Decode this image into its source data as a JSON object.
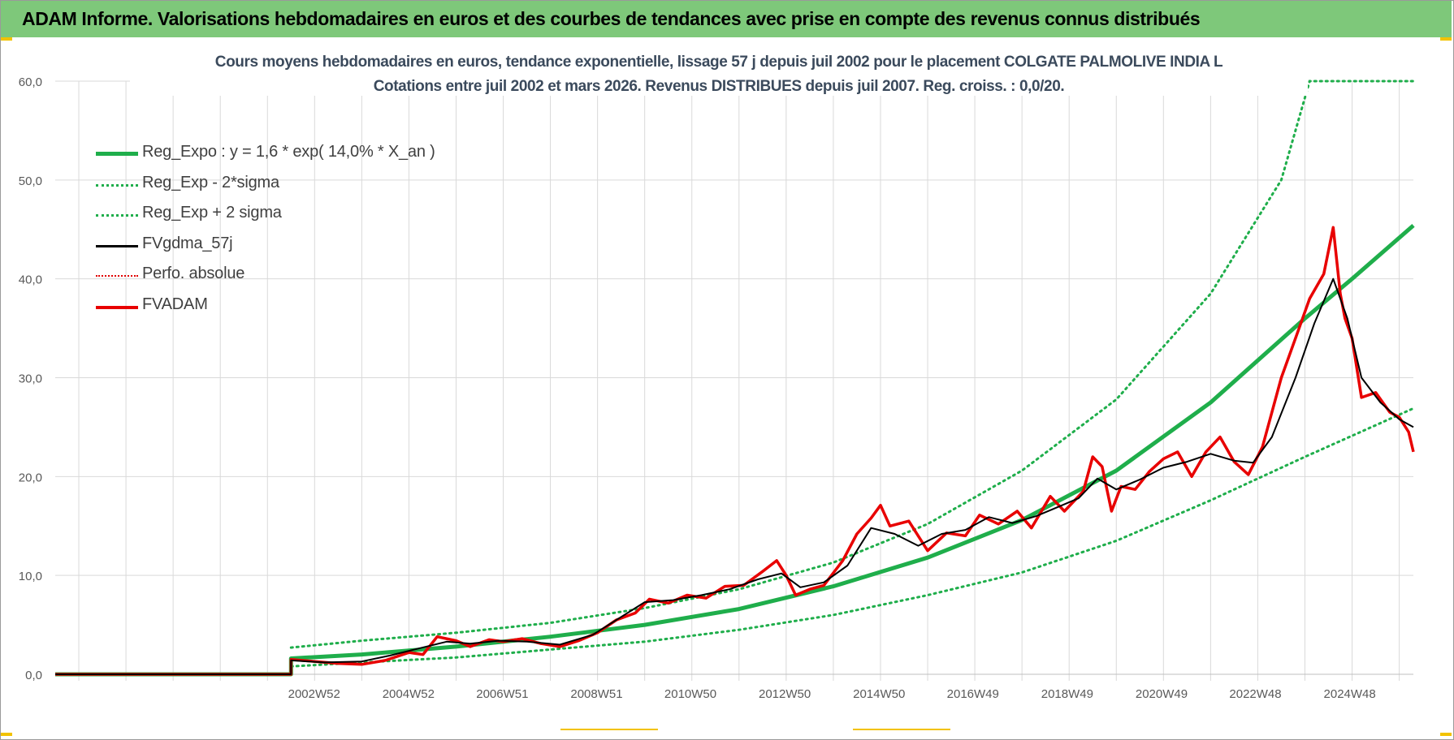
{
  "header": {
    "banner_title": "ADAM Informe. Valorisations hebdomadaires en euros et des courbes de tendances avec prise en compte des revenus connus distribués"
  },
  "colors": {
    "banner_bg": "#7ec87a",
    "reg_expo": "#1fae4b",
    "envelope": "#1fae4b",
    "fvgdma": "#000000",
    "perfo": "#e00000",
    "fvadam": "#e80000",
    "grid": "#d9d9d9",
    "axis_text": "#595959"
  },
  "chart_data": {
    "type": "line",
    "title": "Cours moyens hebdomadaires en euros, tendance exponentielle, lissage 57 j depuis juil 2002 pour le placement COLGATE PALMOLIVE INDIA L",
    "subtitle": "Cotations entre juil 2002 et mars 2026. Revenus DISTRIBUES depuis juil 2007. Reg. croiss. : 0,0/20.",
    "xlabel": "",
    "ylabel": "",
    "ylim": [
      0,
      60
    ],
    "yticks": [
      "0,0",
      "10,0",
      "20,0",
      "30,0",
      "40,0",
      "50,0",
      "60,0"
    ],
    "xlim": [
      1997.5,
      2026.3
    ],
    "xticks": [
      {
        "label": "2002W52",
        "x": 2002.99
      },
      {
        "label": "2004W52",
        "x": 2004.99
      },
      {
        "label": "2006W51",
        "x": 2006.98
      },
      {
        "label": "2008W51",
        "x": 2008.98
      },
      {
        "label": "2010W50",
        "x": 2010.97
      },
      {
        "label": "2012W50",
        "x": 2012.97
      },
      {
        "label": "2014W50",
        "x": 2014.97
      },
      {
        "label": "2016W49",
        "x": 2016.96
      },
      {
        "label": "2018W49",
        "x": 2018.96
      },
      {
        "label": "2020W49",
        "x": 2020.96
      },
      {
        "label": "2022W48",
        "x": 2022.95
      },
      {
        "label": "2024W48",
        "x": 2024.95
      }
    ],
    "legend_position": "top-left",
    "legend": [
      {
        "key": "reg_expo",
        "label": "Reg_Expo : y = 1,6 * exp( 14,0% *  X_an )"
      },
      {
        "key": "reg_minus",
        "label": "Reg_Exp - 2*sigma"
      },
      {
        "key": "reg_plus",
        "label": "Reg_Exp + 2 sigma"
      },
      {
        "key": "fvgdma",
        "label": "FVgdma_57j"
      },
      {
        "key": "perfo",
        "label": "Perfo. absolue"
      },
      {
        "key": "fvadam",
        "label": "FVADAM"
      }
    ],
    "series": [
      {
        "name": "Reg_Expo",
        "key": "reg_expo",
        "x": [
          1997.5,
          2002.5,
          2002.5,
          2004,
          2006,
          2008,
          2010,
          2012,
          2014,
          2016,
          2018,
          2020,
          2022,
          2024,
          2025,
          2026.3
        ],
        "values": [
          0,
          0,
          1.6,
          2.0,
          2.8,
          3.8,
          5.0,
          6.6,
          8.9,
          11.8,
          15.6,
          20.6,
          27.5,
          36.0,
          40.0,
          45.4
        ]
      },
      {
        "name": "Reg_Exp - 2*sigma",
        "key": "reg_minus",
        "x": [
          2002.5,
          2004,
          2006,
          2008,
          2010,
          2012,
          2014,
          2016,
          2018,
          2020,
          2022,
          2024,
          2026.3
        ],
        "values": [
          0.8,
          1.2,
          1.7,
          2.5,
          3.3,
          4.5,
          6.0,
          8.0,
          10.3,
          13.5,
          17.6,
          22.0,
          26.9
        ]
      },
      {
        "name": "Reg_Exp + 2 sigma",
        "key": "reg_plus",
        "x": [
          2002.5,
          2004,
          2006,
          2008,
          2010,
          2012,
          2014,
          2016,
          2018,
          2020,
          2022,
          2023.5,
          2024.1,
          2026.3
        ],
        "values": [
          2.7,
          3.4,
          4.2,
          5.2,
          6.7,
          8.6,
          11.3,
          15.2,
          20.6,
          27.8,
          38.5,
          50.0,
          60.0,
          60.0
        ]
      },
      {
        "name": "FVgdma_57j",
        "key": "fvgdma",
        "x": [
          1997.5,
          2002.5,
          2002.5,
          2003.2,
          2004.0,
          2004.6,
          2005.2,
          2005.8,
          2006.3,
          2006.9,
          2007.5,
          2008.2,
          2008.9,
          2009.4,
          2010.0,
          2010.6,
          2011.2,
          2011.8,
          2012.4,
          2012.9,
          2013.3,
          2013.8,
          2014.3,
          2014.8,
          2015.3,
          2015.8,
          2016.3,
          2016.8,
          2017.3,
          2017.8,
          2018.3,
          2018.8,
          2019.2,
          2019.6,
          2020.0,
          2020.5,
          2021.0,
          2021.5,
          2022.0,
          2022.5,
          2022.9,
          2023.3,
          2023.8,
          2024.2,
          2024.6,
          2024.9,
          2025.2,
          2025.6,
          2026.0,
          2026.3
        ],
        "values": [
          0,
          0,
          1.4,
          1.2,
          1.3,
          1.9,
          2.6,
          3.3,
          3.1,
          3.4,
          3.3,
          3.0,
          4.0,
          5.5,
          7.3,
          7.5,
          8.0,
          8.6,
          9.6,
          10.2,
          8.8,
          9.3,
          11.0,
          14.8,
          14.2,
          13.0,
          14.2,
          14.6,
          15.9,
          15.3,
          16.0,
          17.0,
          17.8,
          19.8,
          18.7,
          19.7,
          20.9,
          21.5,
          22.3,
          21.6,
          21.4,
          24.0,
          30.0,
          35.5,
          40.0,
          36.0,
          30.0,
          27.5,
          25.8,
          25.0
        ]
      },
      {
        "name": "Perfo. absolue",
        "key": "perfo",
        "x": [],
        "values": []
      },
      {
        "name": "FVADAM",
        "key": "fvadam",
        "x": [
          1997.5,
          2002.5,
          2002.5,
          2003.0,
          2003.5,
          2004.0,
          2004.5,
          2005.0,
          2005.3,
          2005.6,
          2006.0,
          2006.3,
          2006.7,
          2007.0,
          2007.4,
          2007.8,
          2008.2,
          2008.6,
          2009.0,
          2009.4,
          2009.8,
          2010.1,
          2010.5,
          2010.9,
          2011.3,
          2011.7,
          2012.1,
          2012.5,
          2012.8,
          2013.0,
          2013.2,
          2013.5,
          2013.8,
          2014.2,
          2014.5,
          2014.8,
          2015.0,
          2015.2,
          2015.6,
          2016.0,
          2016.4,
          2016.8,
          2017.1,
          2017.5,
          2017.9,
          2018.2,
          2018.6,
          2018.9,
          2019.3,
          2019.5,
          2019.7,
          2019.9,
          2020.1,
          2020.4,
          2020.7,
          2021.0,
          2021.3,
          2021.6,
          2021.9,
          2022.2,
          2022.5,
          2022.8,
          2023.1,
          2023.5,
          2023.8,
          2024.1,
          2024.4,
          2024.6,
          2024.75,
          2024.85,
          2025.0,
          2025.2,
          2025.5,
          2025.8,
          2026.0,
          2026.2,
          2026.3
        ],
        "values": [
          0,
          0,
          1.5,
          1.3,
          1.1,
          1.0,
          1.4,
          2.2,
          2.0,
          3.8,
          3.4,
          2.8,
          3.5,
          3.3,
          3.6,
          3.1,
          2.8,
          3.4,
          4.2,
          5.5,
          6.2,
          7.6,
          7.2,
          8.0,
          7.7,
          8.9,
          9.0,
          10.4,
          11.5,
          10.0,
          8.0,
          8.6,
          9.0,
          11.5,
          14.2,
          15.8,
          17.1,
          15.0,
          15.5,
          12.5,
          14.3,
          14.0,
          16.1,
          15.2,
          16.5,
          14.8,
          18.0,
          16.5,
          18.5,
          22.0,
          21.0,
          16.5,
          19.0,
          18.7,
          20.5,
          21.8,
          22.5,
          20.0,
          22.5,
          24.0,
          21.5,
          20.2,
          23.0,
          30.0,
          34.0,
          38.0,
          40.5,
          45.2,
          38.5,
          36.0,
          34.0,
          28.0,
          28.5,
          26.5,
          26.0,
          24.5,
          22.5
        ]
      }
    ]
  }
}
